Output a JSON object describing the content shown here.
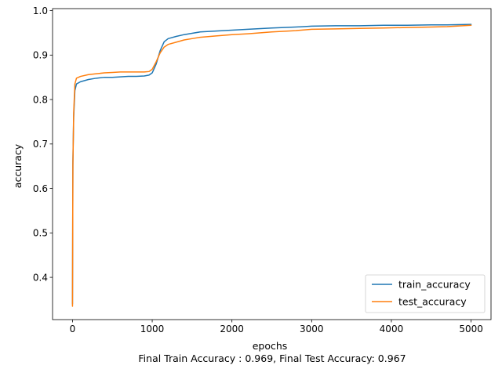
{
  "chart_data": {
    "type": "line",
    "xlabel": "epochs",
    "ylabel": "accuracy",
    "caption": "Final Train Accuracy : 0.969, Final Test Accuracy: 0.967",
    "xlim": [
      -250,
      5250
    ],
    "ylim": [
      0.305,
      1.0045
    ],
    "x_ticks": [
      0,
      1000,
      2000,
      3000,
      4000,
      5000
    ],
    "y_ticks": [
      0.4,
      0.5,
      0.6,
      0.7,
      0.8,
      0.9,
      1.0
    ],
    "x_tick_labels": [
      "0",
      "1000",
      "2000",
      "3000",
      "4000",
      "5000"
    ],
    "y_tick_labels": [
      "0.4",
      "0.5",
      "0.6",
      "0.7",
      "0.8",
      "0.9",
      "1.0"
    ],
    "grid": false,
    "legend_position": "lower-right",
    "series": [
      {
        "name": "train_accuracy",
        "color": "#1f77b4",
        "x": [
          0,
          5,
          15,
          30,
          50,
          100,
          200,
          300,
          400,
          500,
          600,
          700,
          800,
          900,
          960,
          1000,
          1050,
          1100,
          1150,
          1200,
          1300,
          1400,
          1500,
          1600,
          1800,
          2000,
          2200,
          2500,
          2800,
          3000,
          3300,
          3600,
          3900,
          4200,
          4500,
          4700,
          5000
        ],
        "y": [
          0.34,
          0.66,
          0.76,
          0.82,
          0.835,
          0.84,
          0.845,
          0.848,
          0.85,
          0.85,
          0.851,
          0.852,
          0.852,
          0.853,
          0.855,
          0.86,
          0.88,
          0.91,
          0.93,
          0.937,
          0.942,
          0.946,
          0.949,
          0.952,
          0.954,
          0.956,
          0.958,
          0.961,
          0.963,
          0.965,
          0.966,
          0.966,
          0.967,
          0.967,
          0.968,
          0.968,
          0.969
        ]
      },
      {
        "name": "test_accuracy",
        "color": "#ff7f0e",
        "x": [
          0,
          5,
          15,
          30,
          50,
          100,
          200,
          300,
          400,
          500,
          600,
          700,
          800,
          900,
          960,
          1000,
          1050,
          1100,
          1150,
          1200,
          1300,
          1400,
          1500,
          1600,
          1800,
          2000,
          2200,
          2500,
          2800,
          3000,
          3300,
          3600,
          3900,
          4200,
          4500,
          4700,
          5000
        ],
        "y": [
          0.335,
          0.65,
          0.77,
          0.835,
          0.848,
          0.852,
          0.856,
          0.858,
          0.86,
          0.861,
          0.862,
          0.862,
          0.862,
          0.862,
          0.863,
          0.868,
          0.885,
          0.905,
          0.918,
          0.924,
          0.929,
          0.934,
          0.937,
          0.94,
          0.943,
          0.946,
          0.948,
          0.952,
          0.955,
          0.958,
          0.959,
          0.96,
          0.961,
          0.962,
          0.963,
          0.964,
          0.967
        ]
      }
    ]
  }
}
